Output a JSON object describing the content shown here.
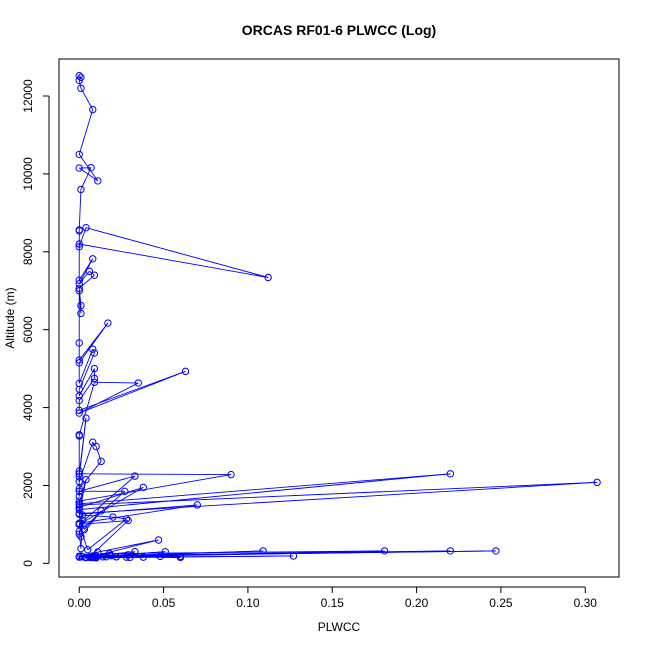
{
  "chart_data": {
    "type": "line",
    "title": "ORCAS RF01-6 PLWCC (Log)",
    "xlabel": "PLWCC",
    "ylabel": "Altitude (m)",
    "xlim": [
      -0.012,
      0.32
    ],
    "ylim": [
      -350,
      12950
    ],
    "xticks": [
      0.0,
      0.05,
      0.1,
      0.15,
      0.2,
      0.25,
      0.3
    ],
    "xtick_labels": [
      "0.00",
      "0.05",
      "0.10",
      "0.15",
      "0.20",
      "0.25",
      "0.30"
    ],
    "yticks": [
      0,
      2000,
      4000,
      6000,
      8000,
      10000,
      12000
    ],
    "ytick_labels": [
      "0",
      "2000",
      "4000",
      "6000",
      "8000",
      "10000",
      "12000"
    ],
    "grid": false,
    "legend": "none",
    "markers": "open-circle",
    "colors": {
      "series": "#0000ff",
      "axes": "#000000",
      "background": "#ffffff"
    },
    "series": [
      {
        "x": [
          0.0,
          0.001,
          0.0,
          0.001,
          0.008,
          0.0,
          0.011,
          0.0,
          0.007,
          0.001,
          0.0,
          0.0,
          0.0,
          0.004,
          0.112,
          0.0,
          0.0,
          0.008,
          0.0,
          0.006,
          0.009,
          0.0,
          0.001,
          0.001,
          0.0,
          0.0,
          0.0,
          0.017,
          0.0,
          0.0,
          0.008,
          0.009,
          0.0,
          0.0,
          0.009,
          0.009,
          0.0,
          0.0,
          0.063,
          0.0,
          0.035,
          0.009,
          0.0,
          0.0,
          0.0,
          0.0,
          0.004,
          0.0,
          0.0,
          0.008,
          0.01,
          0.013,
          0.0,
          0.0,
          0.0,
          0.09,
          0.0,
          0.0,
          0.22,
          0.0,
          0.004,
          0.0,
          0.307,
          0.0,
          0.0,
          0.038,
          0.0,
          0.033,
          0.0,
          0.027,
          0.0,
          0.001,
          0.002,
          0.0,
          0.07,
          0.0,
          0.003,
          0.013,
          0.001,
          0.0,
          0.002,
          0.02,
          0.028,
          0.005,
          0.0,
          0.029,
          0.006,
          0.047,
          0.011,
          0.0,
          0.247,
          0.008,
          0.22,
          0.0,
          0.018,
          0.181,
          0.002,
          0.109,
          0.01,
          0.001,
          0.022,
          0.06,
          0.01,
          0.038,
          0.007,
          0.127,
          0.008,
          0.006,
          0.029,
          0.008,
          0.03,
          0.009,
          0.048,
          0.004,
          0.022,
          0.06,
          0.01,
          0.033,
          0.028,
          0.014,
          0.007,
          0.019,
          0.051,
          0.004,
          0.016,
          0.01,
          0.004
        ],
        "y": [
          12520,
          12480,
          12400,
          12200,
          11650,
          10500,
          9820,
          10150,
          10160,
          9600,
          8560,
          8540,
          8130,
          8620,
          7340,
          8200,
          7270,
          7820,
          7180,
          7500,
          7400,
          7060,
          6620,
          6420,
          7000,
          5660,
          5220,
          6170,
          5150,
          4620,
          5500,
          5400,
          4470,
          4300,
          5000,
          4750,
          4180,
          3930,
          4930,
          3860,
          4630,
          4650,
          3300,
          3270,
          2370,
          2300,
          3730,
          2220,
          2100,
          3110,
          3000,
          2620,
          1920,
          1720,
          2300,
          2280,
          1600,
          1380,
          2300,
          1530,
          2150,
          1280,
          2080,
          1500,
          1440,
          1950,
          1000,
          2240,
          1850,
          1850,
          820,
          380,
          1110,
          1030,
          1500,
          1260,
          870,
          1350,
          690,
          750,
          1240,
          1190,
          1140,
          350,
          1000,
          1100,
          160,
          600,
          290,
          180,
          320,
          190,
          320,
          160,
          250,
          320,
          170,
          320,
          170,
          190,
          170,
          180,
          140,
          160,
          150,
          190,
          150,
          160,
          220,
          160,
          150,
          180,
          180,
          150,
          170,
          150,
          200,
          300,
          160,
          170,
          160,
          200,
          300,
          150,
          170,
          160,
          150
        ]
      }
    ]
  }
}
